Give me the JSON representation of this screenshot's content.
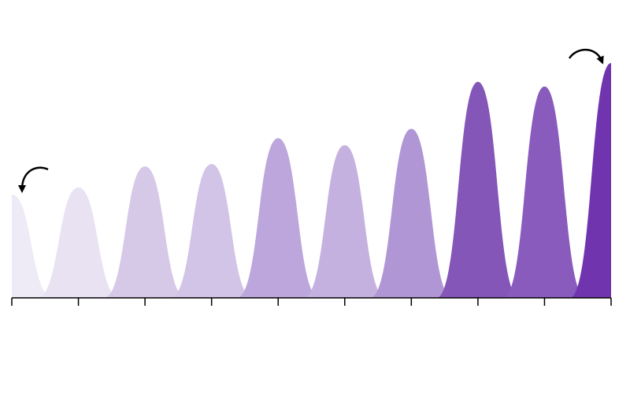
{
  "chart_data": {
    "type": "area",
    "title": "",
    "xlabel": "",
    "ylabel": "",
    "x": [
      0,
      1,
      2,
      3,
      4,
      5,
      6,
      7,
      8,
      9
    ],
    "xlim": [
      0,
      9
    ],
    "ylim": [
      0,
      100
    ],
    "grid": false,
    "legend": "none",
    "values": [
      44,
      47,
      56,
      57,
      68,
      65,
      72,
      92,
      90,
      100
    ],
    "colors": [
      "#eeeaf6",
      "#e8e2f2",
      "#d6c9e8",
      "#d2c4e6",
      "#bca6dc",
      "#c5b1df",
      "#b096d4",
      "#8456b8",
      "#895bbd",
      "#7035ae"
    ],
    "annotations": [
      {
        "label": "start-arrow",
        "x": 0
      },
      {
        "label": "end-arrow",
        "x": 9
      }
    ]
  }
}
